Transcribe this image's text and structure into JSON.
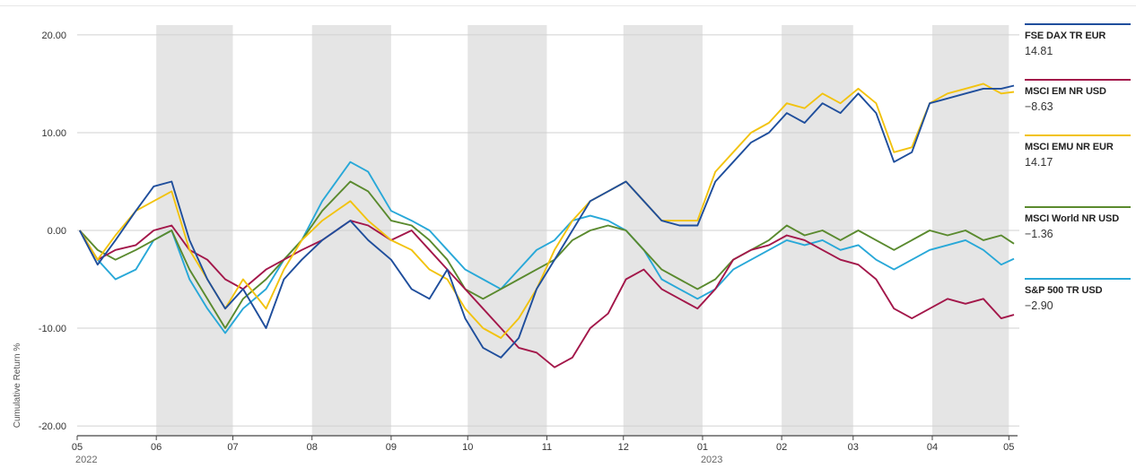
{
  "colors": {
    "shade": "#e5e5e5",
    "grid": "#d0d0d0",
    "axis": "#444444",
    "text": "#333333"
  },
  "chart_data": {
    "type": "line",
    "ylabel": "Cumulative Return %",
    "ylim": [
      -21,
      21
    ],
    "yticks": [
      "20.00",
      "10.00",
      "0.00",
      "-10.00",
      "-20.00"
    ],
    "ytick_values": [
      20,
      10,
      0,
      -10,
      -20
    ],
    "x_range": [
      "2022-05-01",
      "2023-05-03"
    ],
    "xticks": [
      {
        "date": "2022-05-01",
        "label": "05",
        "year": "2022"
      },
      {
        "date": "2022-06-01",
        "label": "06"
      },
      {
        "date": "2022-07-01",
        "label": "07"
      },
      {
        "date": "2022-08-01",
        "label": "08"
      },
      {
        "date": "2022-09-01",
        "label": "09"
      },
      {
        "date": "2022-10-01",
        "label": "10"
      },
      {
        "date": "2022-11-01",
        "label": "11"
      },
      {
        "date": "2022-12-01",
        "label": "12"
      },
      {
        "date": "2023-01-01",
        "label": "01",
        "year": "2023"
      },
      {
        "date": "2023-02-01",
        "label": "02"
      },
      {
        "date": "2023-03-01",
        "label": "03"
      },
      {
        "date": "2023-04-01",
        "label": "04"
      },
      {
        "date": "2023-05-01",
        "label": "05"
      }
    ],
    "shaded_months": [
      [
        "2022-06-01",
        "2022-07-01"
      ],
      [
        "2022-08-01",
        "2022-09-01"
      ],
      [
        "2022-10-01",
        "2022-11-01"
      ],
      [
        "2022-12-01",
        "2023-01-01"
      ],
      [
        "2023-02-01",
        "2023-03-01"
      ],
      [
        "2023-04-01",
        "2023-05-01"
      ]
    ],
    "grid": true,
    "legend_position": "right",
    "series": [
      {
        "name": "FSE DAX TR EUR",
        "value_label": "14.81",
        "color": "#1f4e9c",
        "points": [
          [
            "2022-05-02",
            0
          ],
          [
            "2022-05-09",
            -3.5
          ],
          [
            "2022-05-16",
            -1
          ],
          [
            "2022-05-24",
            2
          ],
          [
            "2022-05-31",
            4.5
          ],
          [
            "2022-06-07",
            5
          ],
          [
            "2022-06-14",
            -1
          ],
          [
            "2022-06-21",
            -5
          ],
          [
            "2022-06-28",
            -8
          ],
          [
            "2022-07-05",
            -6
          ],
          [
            "2022-07-14",
            -10
          ],
          [
            "2022-07-21",
            -5
          ],
          [
            "2022-07-28",
            -3
          ],
          [
            "2022-08-05",
            -1
          ],
          [
            "2022-08-16",
            1
          ],
          [
            "2022-08-23",
            -1
          ],
          [
            "2022-09-01",
            -3
          ],
          [
            "2022-09-09",
            -6
          ],
          [
            "2022-09-16",
            -7
          ],
          [
            "2022-09-23",
            -4
          ],
          [
            "2022-09-30",
            -9
          ],
          [
            "2022-10-07",
            -12
          ],
          [
            "2022-10-14",
            -13
          ],
          [
            "2022-10-21",
            -11
          ],
          [
            "2022-10-28",
            -6
          ],
          [
            "2022-11-04",
            -3
          ],
          [
            "2022-11-11",
            0
          ],
          [
            "2022-11-18",
            3
          ],
          [
            "2022-11-25",
            4
          ],
          [
            "2022-12-02",
            5
          ],
          [
            "2022-12-09",
            3
          ],
          [
            "2022-12-16",
            1
          ],
          [
            "2022-12-23",
            0.5
          ],
          [
            "2022-12-30",
            0.5
          ],
          [
            "2023-01-06",
            5
          ],
          [
            "2023-01-13",
            7
          ],
          [
            "2023-01-20",
            9
          ],
          [
            "2023-01-27",
            10
          ],
          [
            "2023-02-03",
            12
          ],
          [
            "2023-02-10",
            11
          ],
          [
            "2023-02-17",
            13
          ],
          [
            "2023-02-24",
            12
          ],
          [
            "2023-03-03",
            14
          ],
          [
            "2023-03-10",
            12
          ],
          [
            "2023-03-17",
            7
          ],
          [
            "2023-03-24",
            8
          ],
          [
            "2023-03-31",
            13
          ],
          [
            "2023-04-07",
            13.5
          ],
          [
            "2023-04-14",
            14
          ],
          [
            "2023-04-21",
            14.5
          ],
          [
            "2023-04-28",
            14.5
          ],
          [
            "2023-05-03",
            14.81
          ]
        ]
      },
      {
        "name": "MSCI EM NR USD",
        "value_label": "−8.63",
        "color": "#a3174a",
        "points": [
          [
            "2022-05-02",
            0
          ],
          [
            "2022-05-09",
            -3
          ],
          [
            "2022-05-16",
            -2
          ],
          [
            "2022-05-24",
            -1.5
          ],
          [
            "2022-05-31",
            0
          ],
          [
            "2022-06-07",
            0.5
          ],
          [
            "2022-06-14",
            -2
          ],
          [
            "2022-06-21",
            -3
          ],
          [
            "2022-06-28",
            -5
          ],
          [
            "2022-07-05",
            -6
          ],
          [
            "2022-07-14",
            -4
          ],
          [
            "2022-07-21",
            -3
          ],
          [
            "2022-07-28",
            -2
          ],
          [
            "2022-08-05",
            -1
          ],
          [
            "2022-08-16",
            1
          ],
          [
            "2022-08-23",
            0.5
          ],
          [
            "2022-09-01",
            -1
          ],
          [
            "2022-09-09",
            0
          ],
          [
            "2022-09-16",
            -2
          ],
          [
            "2022-09-23",
            -4
          ],
          [
            "2022-09-30",
            -6
          ],
          [
            "2022-10-07",
            -8
          ],
          [
            "2022-10-14",
            -10
          ],
          [
            "2022-10-21",
            -12
          ],
          [
            "2022-10-28",
            -12.5
          ],
          [
            "2022-11-04",
            -14
          ],
          [
            "2022-11-11",
            -13
          ],
          [
            "2022-11-18",
            -10
          ],
          [
            "2022-11-25",
            -8.5
          ],
          [
            "2022-12-02",
            -5
          ],
          [
            "2022-12-09",
            -4
          ],
          [
            "2022-12-16",
            -6
          ],
          [
            "2022-12-23",
            -7
          ],
          [
            "2022-12-30",
            -8
          ],
          [
            "2023-01-06",
            -6
          ],
          [
            "2023-01-13",
            -3
          ],
          [
            "2023-01-20",
            -2
          ],
          [
            "2023-01-27",
            -1.5
          ],
          [
            "2023-02-03",
            -0.5
          ],
          [
            "2023-02-10",
            -1
          ],
          [
            "2023-02-17",
            -2
          ],
          [
            "2023-02-24",
            -3
          ],
          [
            "2023-03-03",
            -3.5
          ],
          [
            "2023-03-10",
            -5
          ],
          [
            "2023-03-17",
            -8
          ],
          [
            "2023-03-24",
            -9
          ],
          [
            "2023-03-31",
            -8
          ],
          [
            "2023-04-07",
            -7
          ],
          [
            "2023-04-14",
            -7.5
          ],
          [
            "2023-04-21",
            -7
          ],
          [
            "2023-04-28",
            -9
          ],
          [
            "2023-05-03",
            -8.63
          ]
        ]
      },
      {
        "name": "MSCI EMU NR EUR",
        "value_label": "14.17",
        "color": "#f2c30f",
        "points": [
          [
            "2022-05-02",
            0
          ],
          [
            "2022-05-09",
            -3
          ],
          [
            "2022-05-16",
            -0.5
          ],
          [
            "2022-05-24",
            2
          ],
          [
            "2022-05-31",
            3
          ],
          [
            "2022-06-07",
            4
          ],
          [
            "2022-06-14",
            -2
          ],
          [
            "2022-06-21",
            -5
          ],
          [
            "2022-06-28",
            -8
          ],
          [
            "2022-07-05",
            -5
          ],
          [
            "2022-07-14",
            -8
          ],
          [
            "2022-07-21",
            -4
          ],
          [
            "2022-07-28",
            -1
          ],
          [
            "2022-08-05",
            1
          ],
          [
            "2022-08-16",
            3
          ],
          [
            "2022-08-23",
            1
          ],
          [
            "2022-09-01",
            -1
          ],
          [
            "2022-09-09",
            -2
          ],
          [
            "2022-09-16",
            -4
          ],
          [
            "2022-09-23",
            -5
          ],
          [
            "2022-09-30",
            -8
          ],
          [
            "2022-10-07",
            -10
          ],
          [
            "2022-10-14",
            -11
          ],
          [
            "2022-10-21",
            -9
          ],
          [
            "2022-10-28",
            -6
          ],
          [
            "2022-11-04",
            -2
          ],
          [
            "2022-11-11",
            1
          ],
          [
            "2022-11-18",
            3
          ],
          [
            "2022-11-25",
            4
          ],
          [
            "2022-12-02",
            5
          ],
          [
            "2022-12-09",
            3
          ],
          [
            "2022-12-16",
            1
          ],
          [
            "2022-12-23",
            1
          ],
          [
            "2022-12-30",
            1
          ],
          [
            "2023-01-06",
            6
          ],
          [
            "2023-01-13",
            8
          ],
          [
            "2023-01-20",
            10
          ],
          [
            "2023-01-27",
            11
          ],
          [
            "2023-02-03",
            13
          ],
          [
            "2023-02-10",
            12.5
          ],
          [
            "2023-02-17",
            14
          ],
          [
            "2023-02-24",
            13
          ],
          [
            "2023-03-03",
            14.5
          ],
          [
            "2023-03-10",
            13
          ],
          [
            "2023-03-17",
            8
          ],
          [
            "2023-03-24",
            8.5
          ],
          [
            "2023-03-31",
            13
          ],
          [
            "2023-04-07",
            14
          ],
          [
            "2023-04-14",
            14.5
          ],
          [
            "2023-04-21",
            15
          ],
          [
            "2023-04-28",
            14
          ],
          [
            "2023-05-03",
            14.17
          ]
        ]
      },
      {
        "name": "MSCI World NR USD",
        "value_label": "−1.36",
        "color": "#5a8a2e",
        "points": [
          [
            "2022-05-02",
            0
          ],
          [
            "2022-05-09",
            -2
          ],
          [
            "2022-05-16",
            -3
          ],
          [
            "2022-05-24",
            -2
          ],
          [
            "2022-05-31",
            -1
          ],
          [
            "2022-06-07",
            0
          ],
          [
            "2022-06-14",
            -4
          ],
          [
            "2022-06-21",
            -7
          ],
          [
            "2022-06-28",
            -10
          ],
          [
            "2022-07-05",
            -7
          ],
          [
            "2022-07-14",
            -5
          ],
          [
            "2022-07-21",
            -3
          ],
          [
            "2022-07-28",
            -1
          ],
          [
            "2022-08-05",
            2
          ],
          [
            "2022-08-16",
            5
          ],
          [
            "2022-08-23",
            4
          ],
          [
            "2022-09-01",
            1
          ],
          [
            "2022-09-09",
            0.5
          ],
          [
            "2022-09-16",
            -1
          ],
          [
            "2022-09-23",
            -3
          ],
          [
            "2022-09-30",
            -6
          ],
          [
            "2022-10-07",
            -7
          ],
          [
            "2022-10-14",
            -6
          ],
          [
            "2022-10-21",
            -5
          ],
          [
            "2022-10-28",
            -4
          ],
          [
            "2022-11-04",
            -3
          ],
          [
            "2022-11-11",
            -1
          ],
          [
            "2022-11-18",
            0
          ],
          [
            "2022-11-25",
            0.5
          ],
          [
            "2022-12-02",
            0
          ],
          [
            "2022-12-09",
            -2
          ],
          [
            "2022-12-16",
            -4
          ],
          [
            "2022-12-23",
            -5
          ],
          [
            "2022-12-30",
            -6
          ],
          [
            "2023-01-06",
            -5
          ],
          [
            "2023-01-13",
            -3
          ],
          [
            "2023-01-20",
            -2
          ],
          [
            "2023-01-27",
            -1
          ],
          [
            "2023-02-03",
            0.5
          ],
          [
            "2023-02-10",
            -0.5
          ],
          [
            "2023-02-17",
            0
          ],
          [
            "2023-02-24",
            -1
          ],
          [
            "2023-03-03",
            0
          ],
          [
            "2023-03-10",
            -1
          ],
          [
            "2023-03-17",
            -2
          ],
          [
            "2023-03-24",
            -1
          ],
          [
            "2023-03-31",
            0
          ],
          [
            "2023-04-07",
            -0.5
          ],
          [
            "2023-04-14",
            0
          ],
          [
            "2023-04-21",
            -1
          ],
          [
            "2023-04-28",
            -0.5
          ],
          [
            "2023-05-03",
            -1.36
          ]
        ]
      },
      {
        "name": "S&P 500 TR USD",
        "value_label": "−2.90",
        "color": "#28a8d8",
        "points": [
          [
            "2022-05-02",
            0
          ],
          [
            "2022-05-09",
            -3
          ],
          [
            "2022-05-16",
            -5
          ],
          [
            "2022-05-24",
            -4
          ],
          [
            "2022-05-31",
            -1
          ],
          [
            "2022-06-07",
            0
          ],
          [
            "2022-06-14",
            -5
          ],
          [
            "2022-06-21",
            -8
          ],
          [
            "2022-06-28",
            -10.5
          ],
          [
            "2022-07-05",
            -8
          ],
          [
            "2022-07-14",
            -6
          ],
          [
            "2022-07-21",
            -3
          ],
          [
            "2022-07-28",
            -1
          ],
          [
            "2022-08-05",
            3
          ],
          [
            "2022-08-16",
            7
          ],
          [
            "2022-08-23",
            6
          ],
          [
            "2022-09-01",
            2
          ],
          [
            "2022-09-09",
            1
          ],
          [
            "2022-09-16",
            0
          ],
          [
            "2022-09-23",
            -2
          ],
          [
            "2022-09-30",
            -4
          ],
          [
            "2022-10-07",
            -5
          ],
          [
            "2022-10-14",
            -6
          ],
          [
            "2022-10-21",
            -4
          ],
          [
            "2022-10-28",
            -2
          ],
          [
            "2022-11-04",
            -1
          ],
          [
            "2022-11-11",
            1
          ],
          [
            "2022-11-18",
            1.5
          ],
          [
            "2022-11-25",
            1
          ],
          [
            "2022-12-02",
            0
          ],
          [
            "2022-12-09",
            -2
          ],
          [
            "2022-12-16",
            -5
          ],
          [
            "2022-12-23",
            -6
          ],
          [
            "2022-12-30",
            -7
          ],
          [
            "2023-01-06",
            -6
          ],
          [
            "2023-01-13",
            -4
          ],
          [
            "2023-01-20",
            -3
          ],
          [
            "2023-01-27",
            -2
          ],
          [
            "2023-02-03",
            -1
          ],
          [
            "2023-02-10",
            -1.5
          ],
          [
            "2023-02-17",
            -1
          ],
          [
            "2023-02-24",
            -2
          ],
          [
            "2023-03-03",
            -1.5
          ],
          [
            "2023-03-10",
            -3
          ],
          [
            "2023-03-17",
            -4
          ],
          [
            "2023-03-24",
            -3
          ],
          [
            "2023-03-31",
            -2
          ],
          [
            "2023-04-07",
            -1.5
          ],
          [
            "2023-04-14",
            -1
          ],
          [
            "2023-04-21",
            -2
          ],
          [
            "2023-04-28",
            -3.5
          ],
          [
            "2023-05-03",
            -2.9
          ]
        ]
      }
    ]
  }
}
